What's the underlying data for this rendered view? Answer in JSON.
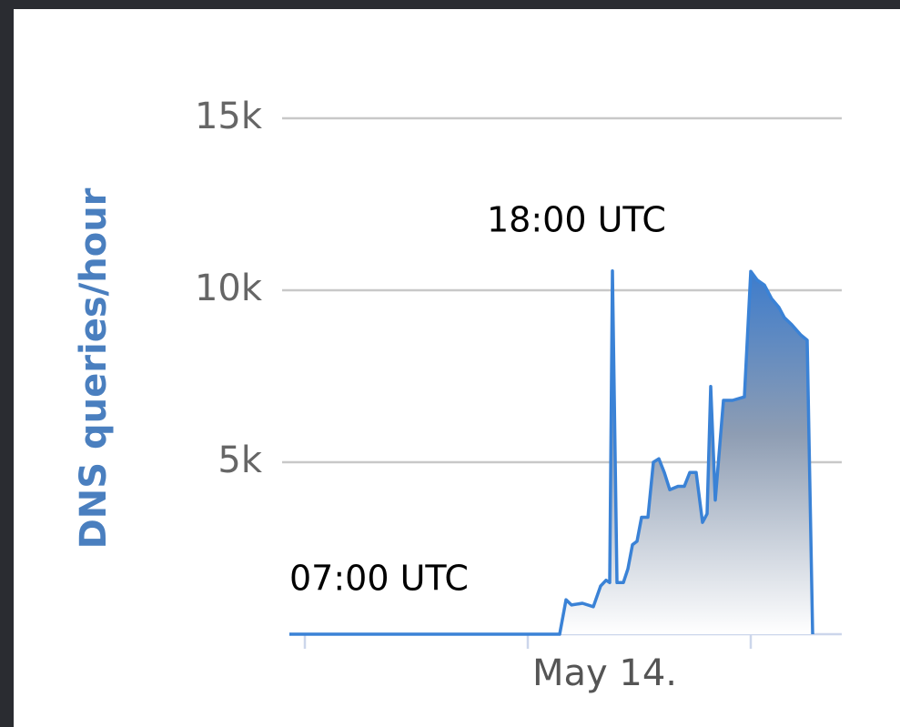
{
  "chart_data": {
    "type": "area",
    "y_axis_label": "DNS queries/hour",
    "x_axis_label": "May 14.",
    "annotations": [
      "18:00 UTC",
      "07:00 UTC"
    ],
    "color": "#3a82d6",
    "x": [
      0,
      59.4,
      60.8,
      62,
      64.4,
      66.8,
      68.4,
      69.6,
      70.4,
      71,
      72,
      73.4,
      74.4,
      75.4,
      76.4,
      77.4,
      78.8,
      80,
      81.2,
      82.4,
      83.6,
      85.4,
      86.8,
      88,
      89.4,
      90.8,
      91.8,
      92.6,
      93.6,
      95.4,
      97.4,
      100,
      101.4,
      102.8,
      104.4,
      106,
      107.6,
      108.8,
      110.4,
      112.4,
      113.8,
      115
    ],
    "values": [
      0,
      0,
      1000,
      850,
      900,
      800,
      1400,
      1570,
      1500,
      10560,
      1500,
      1500,
      1900,
      2600,
      2700,
      3400,
      3400,
      5000,
      5100,
      4700,
      4200,
      4300,
      4300,
      4700,
      4700,
      3250,
      3500,
      7200,
      3900,
      6800,
      6800,
      6900,
      10550,
      10300,
      10150,
      9750,
      9500,
      9200,
      9000,
      8700,
      8550,
      0
    ],
    "xlim": [
      0,
      121.4
    ],
    "xticks": [
      3.4,
      52.4,
      101.4
    ],
    "ylim": [
      0,
      15000
    ],
    "yticks": [
      {
        "value": 5000,
        "label": "5k"
      },
      {
        "value": 10000,
        "label": "10k"
      },
      {
        "value": 15000,
        "label": "15k"
      }
    ],
    "grid": true
  }
}
